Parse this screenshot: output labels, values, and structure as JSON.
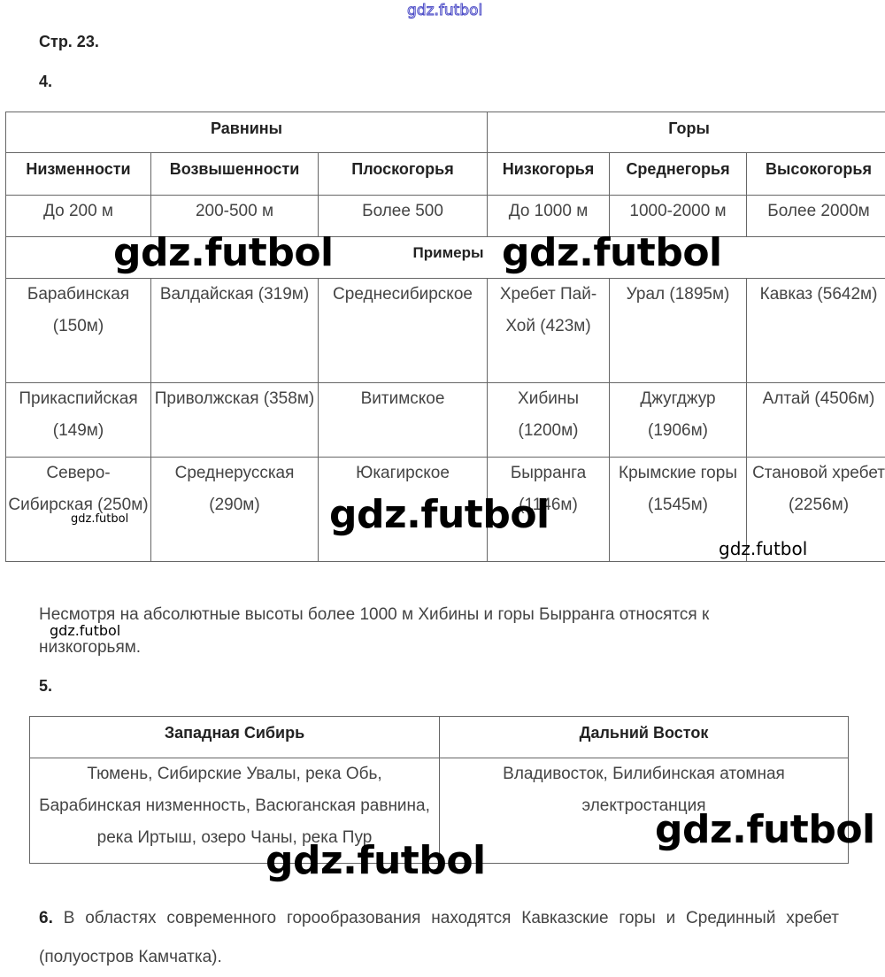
{
  "watermark": "gdz.futbol",
  "page_label": "Стр. 23.",
  "task4": {
    "number": "4.",
    "group_plains": "Равнины",
    "group_mountains": "Горы",
    "columns": [
      "Низменности",
      "Возвышенности",
      "Плоскогорья",
      "Низкогорья",
      "Среднегорья",
      "Высокогорья"
    ],
    "heights": [
      "До 200 м",
      "200-500 м",
      "Более 500",
      "До 1000 м",
      "1000-2000 м",
      "Более 2000м"
    ],
    "examples_label": "Примеры",
    "rows": [
      [
        "Барабинская (150м)",
        "Валдайская (319м)",
        "Среднесибирское",
        "Хребет Пай-Хой (423м)",
        "Урал (1895м)",
        "Кавказ (5642м)"
      ],
      [
        "Прикаспийская (149м)",
        "Приволжская (358м)",
        "Витимское",
        "Хибины (1200м)",
        "Джугджур (1906м)",
        "Алтай (4506м)"
      ],
      [
        "Северо-Сибирская (250м)",
        "Среднерусская (290м)",
        "Юкагирское",
        "Бырранга (1146м)",
        "Крымские горы (1545м)",
        "Становой хребет (2256м)"
      ]
    ],
    "note": "Несмотря на абсолютные высоты более 1000 м Хибины и горы Бырранга относятся к низкогорьям."
  },
  "task5": {
    "number": "5.",
    "headers": [
      "Западная Сибирь",
      "Дальний Восток"
    ],
    "cells": [
      "Тюмень, Сибирские Увалы, река Обь, Барабинская низменность, Васюганская равнина, река Иртыш, озеро Чаны, река Пур",
      "Владивосток, Билибинская атомная электростанция"
    ]
  },
  "task6": {
    "number": "6.",
    "text": "В областях современного горообразования находятся Кавказские горы и Срединный хребет (полуостров Камчатка)."
  }
}
